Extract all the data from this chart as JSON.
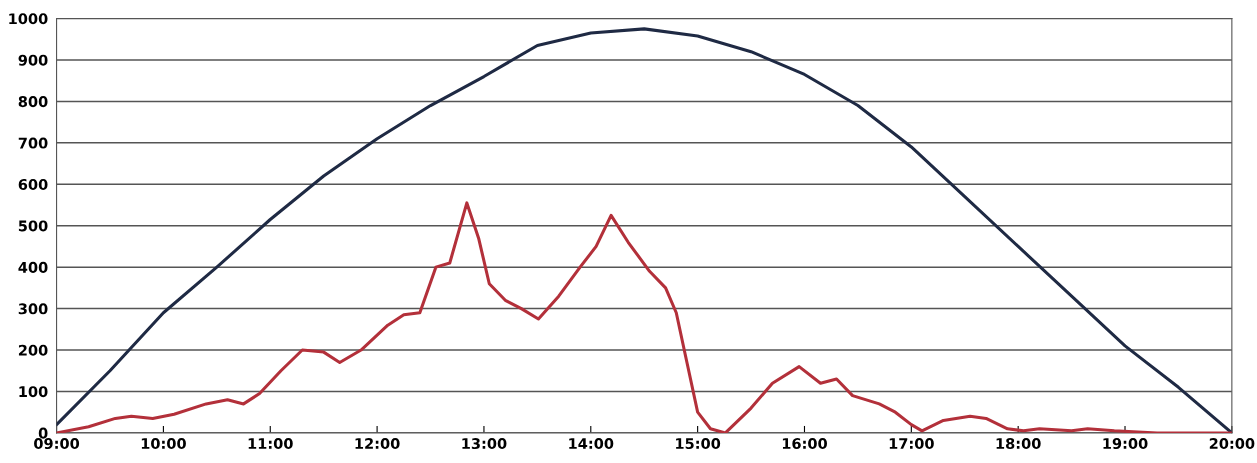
{
  "chart_data": {
    "type": "line",
    "xlim": [
      9,
      20
    ],
    "ylim": [
      0,
      1000
    ],
    "xticks": [
      {
        "value": 9,
        "label": "09:00"
      },
      {
        "value": 10,
        "label": "10:00"
      },
      {
        "value": 11,
        "label": "11:00"
      },
      {
        "value": 12,
        "label": "12:00"
      },
      {
        "value": 13,
        "label": "13:00"
      },
      {
        "value": 14,
        "label": "14:00"
      },
      {
        "value": 15,
        "label": "15:00"
      },
      {
        "value": 16,
        "label": "16:00"
      },
      {
        "value": 17,
        "label": "17:00"
      },
      {
        "value": 18,
        "label": "18:00"
      },
      {
        "value": 19,
        "label": "19:00"
      },
      {
        "value": 20,
        "label": "20:00"
      }
    ],
    "yticks": [
      0,
      100,
      200,
      300,
      400,
      500,
      600,
      700,
      800,
      900,
      1000
    ],
    "grid": "y",
    "marker": "none",
    "line_style": "solid",
    "series": [
      {
        "color": "#1f2a44",
        "x": [
          9,
          9.5,
          10,
          10.5,
          11,
          11.5,
          12,
          12.5,
          13,
          13.5,
          14,
          14.5,
          15,
          15.5,
          16,
          16.5,
          17,
          17.5,
          18,
          18.5,
          19,
          19.5,
          20
        ],
        "values": [
          20,
          150,
          290,
          400,
          515,
          620,
          710,
          790,
          860,
          935,
          965,
          975,
          958,
          920,
          865,
          790,
          690,
          570,
          450,
          330,
          210,
          110,
          0
        ]
      },
      {
        "color": "#b3303a",
        "x": [
          9,
          9.3,
          9.55,
          9.7,
          9.9,
          10.1,
          10.4,
          10.6,
          10.75,
          10.9,
          11.1,
          11.3,
          11.5,
          11.65,
          11.85,
          12.1,
          12.25,
          12.4,
          12.55,
          12.68,
          12.84,
          12.95,
          13.05,
          13.2,
          13.35,
          13.51,
          13.7,
          13.9,
          14.05,
          14.19,
          14.35,
          14.55,
          14.7,
          14.8,
          14.9,
          15.0,
          15.12,
          15.26,
          15.5,
          15.7,
          15.95,
          16.15,
          16.3,
          16.45,
          16.7,
          16.85,
          17.0,
          17.1,
          17.3,
          17.55,
          17.7,
          17.9,
          18.05,
          18.2,
          18.5,
          18.65,
          18.9,
          19.3,
          19.6,
          20
        ],
        "values": [
          0,
          15,
          35,
          40,
          35,
          45,
          70,
          80,
          70,
          95,
          150,
          200,
          195,
          170,
          200,
          260,
          285,
          290,
          400,
          410,
          555,
          470,
          360,
          320,
          300,
          275,
          330,
          400,
          450,
          525,
          460,
          390,
          350,
          290,
          170,
          50,
          10,
          0,
          60,
          120,
          160,
          120,
          130,
          90,
          70,
          50,
          20,
          5,
          30,
          40,
          35,
          10,
          5,
          10,
          5,
          10,
          5,
          0,
          0,
          0
        ]
      }
    ]
  }
}
